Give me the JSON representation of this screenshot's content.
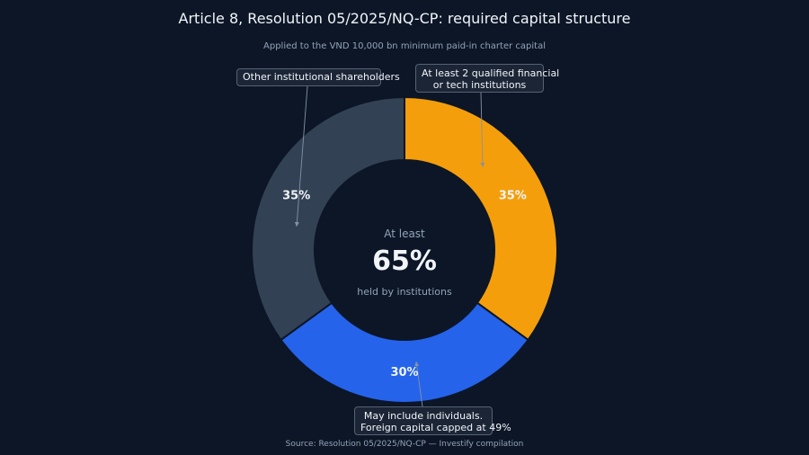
{
  "chart_data": {
    "type": "pie",
    "title": "Article 8, Resolution 05/2025/NQ-CP: required capital structure",
    "subtitle": "Applied to the VND 10,000 bn minimum paid-in charter capital",
    "slices": [
      {
        "value": 35,
        "label": "35%",
        "color": "#f59e0b",
        "annotation": [
          "At least 2 qualified financial",
          "or tech institutions"
        ]
      },
      {
        "value": 30,
        "label": "30%",
        "color": "#2563eb",
        "annotation": [
          "May include individuals.",
          "Foreign capital capped at 49%"
        ]
      },
      {
        "value": 35,
        "label": "35%",
        "color": "#334155",
        "annotation": [
          "Other institutional shareholders"
        ]
      }
    ],
    "center": {
      "prefix": "At least",
      "value": "65%",
      "suffix": "held by institutions"
    },
    "source": "Source: Resolution 05/2025/NQ-CP — Investify compilation"
  },
  "colors": {
    "background": "#0c1627",
    "hole": "#0c1627",
    "text_primary": "#f1f5f9",
    "text_muted": "#94a3b8",
    "callout_bg": "#1b2536",
    "callout_border": "#556274",
    "leader": "#8593a6"
  }
}
